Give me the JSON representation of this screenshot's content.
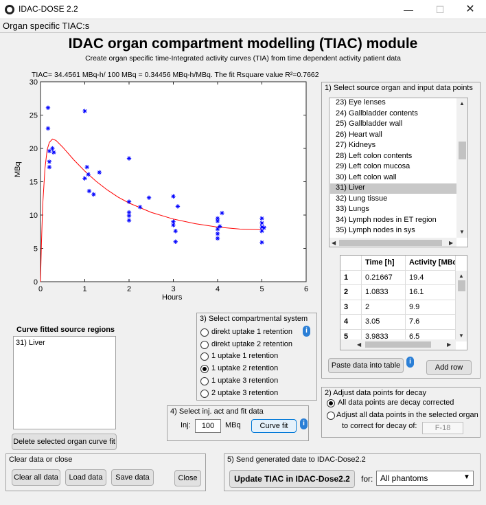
{
  "window": {
    "title": "IDAC-DOSE 2.2",
    "min": "—",
    "max": "☐",
    "close": "✕"
  },
  "menu": {
    "label": "Organ specific TIAC:s"
  },
  "header": {
    "title": "IDAC organ compartment modelling (TIAC) module",
    "subtitle": "Create organ specific time-Integrated activity curves (TIA) from time dependent activity patient data"
  },
  "tiac_text": "TIAC= 34.4561  MBq-h/  100  MBq  =  0.34456  MBq-h/MBq.  The  fit  Rsquare  value  R²=0.7662",
  "chart_data": {
    "type": "scatter",
    "xlabel": "Hours",
    "ylabel": "MBq",
    "xlim": [
      0,
      6
    ],
    "ylim": [
      0,
      30
    ],
    "xticks": [
      0,
      1,
      2,
      3,
      4,
      5,
      6
    ],
    "yticks": [
      0,
      5,
      10,
      15,
      20,
      25,
      30
    ],
    "grid": false,
    "marker_color": "#0000ff",
    "curve_color": "#ff0000",
    "points": [
      [
        0.17,
        26.1
      ],
      [
        0.17,
        23.0
      ],
      [
        0.2,
        19.6
      ],
      [
        0.2,
        18.0
      ],
      [
        0.2,
        17.2
      ],
      [
        0.27,
        20.0
      ],
      [
        0.3,
        19.4
      ],
      [
        1.0,
        25.6
      ],
      [
        1.0,
        15.5
      ],
      [
        1.05,
        17.2
      ],
      [
        1.08,
        16.1
      ],
      [
        1.1,
        13.6
      ],
      [
        1.2,
        13.1
      ],
      [
        1.33,
        16.4
      ],
      [
        2.0,
        18.5
      ],
      [
        2.0,
        12.0
      ],
      [
        2.0,
        10.4
      ],
      [
        2.0,
        9.9
      ],
      [
        2.0,
        9.2
      ],
      [
        2.25,
        11.2
      ],
      [
        2.45,
        12.6
      ],
      [
        3.0,
        12.8
      ],
      [
        3.0,
        9.0
      ],
      [
        3.0,
        8.5
      ],
      [
        3.05,
        7.6
      ],
      [
        3.05,
        6.0
      ],
      [
        3.1,
        11.3
      ],
      [
        4.0,
        9.5
      ],
      [
        4.0,
        9.1
      ],
      [
        4.0,
        7.9
      ],
      [
        4.0,
        7.2
      ],
      [
        4.0,
        6.5
      ],
      [
        4.05,
        8.3
      ],
      [
        4.1,
        10.3
      ],
      [
        5.0,
        9.5
      ],
      [
        5.0,
        8.8
      ],
      [
        5.0,
        8.2
      ],
      [
        5.0,
        7.6
      ],
      [
        5.0,
        5.9
      ],
      [
        5.05,
        8.1
      ]
    ],
    "fit_curve": [
      [
        0.0,
        0.0
      ],
      [
        0.02,
        5.5
      ],
      [
        0.05,
        11.5
      ],
      [
        0.1,
        17.0
      ],
      [
        0.15,
        19.8
      ],
      [
        0.2,
        20.9
      ],
      [
        0.27,
        21.4
      ],
      [
        0.35,
        21.2
      ],
      [
        0.5,
        20.2
      ],
      [
        0.75,
        18.3
      ],
      [
        1.0,
        16.6
      ],
      [
        1.25,
        15.1
      ],
      [
        1.5,
        13.8
      ],
      [
        1.75,
        12.7
      ],
      [
        2.0,
        11.8
      ],
      [
        2.5,
        10.4
      ],
      [
        3.0,
        9.4
      ],
      [
        3.5,
        8.7
      ],
      [
        4.0,
        8.2
      ],
      [
        4.5,
        7.9
      ],
      [
        5.0,
        7.8
      ]
    ]
  },
  "curve_fitted": {
    "title": "Curve fitted source regions",
    "items": [
      "31) Liver"
    ],
    "delete_label": "Delete selected organ curve fit"
  },
  "source_panel": {
    "title": "1) Select source organ and input data points",
    "organs": [
      "23) Eye lenses",
      "24) Gallbladder contents",
      "25) Gallbladder wall",
      "26) Heart wall",
      "27) Kidneys",
      "28) Left colon contents",
      "29) Left colon mucosa",
      "30) Left colon wall",
      "31) Liver",
      "32) Lung tissue",
      "33) Lungs",
      "34) Lymph nodes in ET region",
      "35) Lymph nodes in sys"
    ],
    "selected": "31) Liver",
    "table": {
      "headers": [
        "",
        "Time [h]",
        "Activity [MBq"
      ],
      "rows": [
        [
          "1",
          "0.21667",
          "19.4"
        ],
        [
          "2",
          "1.0833",
          "16.1"
        ],
        [
          "3",
          "2",
          "9.9"
        ],
        [
          "4",
          "3.05",
          "7.6"
        ],
        [
          "5",
          "3.9833",
          "6.5"
        ]
      ]
    },
    "paste_label": "Paste data into table",
    "add_row_label": "Add row",
    "info": "i"
  },
  "compartment": {
    "title": "3) Select compartmental system",
    "options": [
      "direkt uptake 1 retention",
      "direkt uptake 2 retention",
      "1 uptake 1 retention",
      "1 uptake 2 retention",
      "1 uptake 3 retention",
      "2 uptake 3 retention"
    ],
    "selected_index": 3,
    "info": "i"
  },
  "injection": {
    "title": "4) Select inj. act and fit data",
    "inj_label": "Inj:",
    "value": "100",
    "unit": "MBq",
    "fit_label": "Curve fit",
    "info": "i"
  },
  "decay": {
    "title": "2) Adjust data points for decay",
    "option1": "All data points are decay corrected",
    "option2_line1": "Adjust all data points in the selected organ",
    "option2_line2": "to correct for decay of:",
    "nuclide": "F-18"
  },
  "clear_panel": {
    "title": "Clear data or close",
    "clear_all": "Clear all data",
    "load": "Load data",
    "save": "Save data",
    "close": "Close"
  },
  "send_panel": {
    "title": "5) Send generated date to IDAC-Dose2.2",
    "update_label": "Update TIAC in IDAC-Dose2.2",
    "for_label": "for:",
    "phantom_value": "All phantoms"
  }
}
